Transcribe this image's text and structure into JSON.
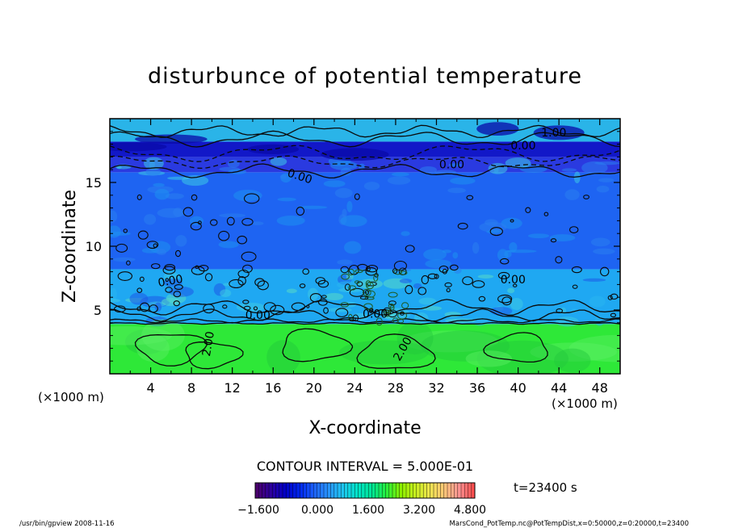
{
  "chart_data": {
    "type": "heatmap",
    "title": "disturbunce of potential temperature",
    "xlabel": "X-coordinate",
    "ylabel": "Z-coordinate",
    "x_units": "(×1000 m)",
    "y_units": "(×1000 m)",
    "xlim": [
      0,
      50
    ],
    "ylim": [
      0,
      20
    ],
    "x_ticks": [
      "4",
      "8",
      "12",
      "16",
      "20",
      "24",
      "28",
      "32",
      "36",
      "40",
      "44",
      "48"
    ],
    "y_ticks": [
      "5",
      "10",
      "15"
    ],
    "contour_interval_label": "CONTOUR INTERVAL = 5.000E-01",
    "time_label": "t=23400 s",
    "contour_labels": [
      "1.00",
      "0.00",
      "0.00",
      "0.00",
      "0.00",
      "0.00",
      "0.00",
      "0.00",
      "2.00",
      "2.00"
    ],
    "colorbar": {
      "min": -1.6,
      "max": 4.8,
      "tick_labels": [
        "−1.600",
        "0.000",
        "1.600",
        "3.200",
        "4.800"
      ],
      "colors": [
        "#4a006e",
        "#2d00a0",
        "#0000c8",
        "#0028f0",
        "#1e64ff",
        "#2896ff",
        "#1ec8f0",
        "#00e6c8",
        "#00e696",
        "#28f03c",
        "#8cf000",
        "#c8f01e",
        "#f0e650",
        "#ffc878",
        "#ff9696",
        "#ff5050"
      ]
    },
    "bands": [
      {
        "z": [
          0,
          3.9
        ],
        "level": 2.0,
        "color": "#2ee838"
      },
      {
        "z": [
          3.9,
          8.2
        ],
        "level": 0.5,
        "color": "#1fa8f2"
      },
      {
        "z": [
          8.2,
          15.8
        ],
        "level": 0.0,
        "color": "#1e64f2"
      },
      {
        "z": [
          15.8,
          17.0
        ],
        "level": -1.0,
        "color": "#2a3ae0"
      },
      {
        "z": [
          17.0,
          18.2
        ],
        "level": -1.2,
        "color": "#1218c8"
      },
      {
        "z": [
          18.2,
          20.0
        ],
        "level": 0.6,
        "color": "#2ab4e8"
      }
    ]
  },
  "footer": {
    "left": "/usr/bin/gpview   2008-11-16",
    "right": "MarsCond_PotTemp.nc@PotTempDist,x=0:50000,z=0:20000,t=23400"
  }
}
